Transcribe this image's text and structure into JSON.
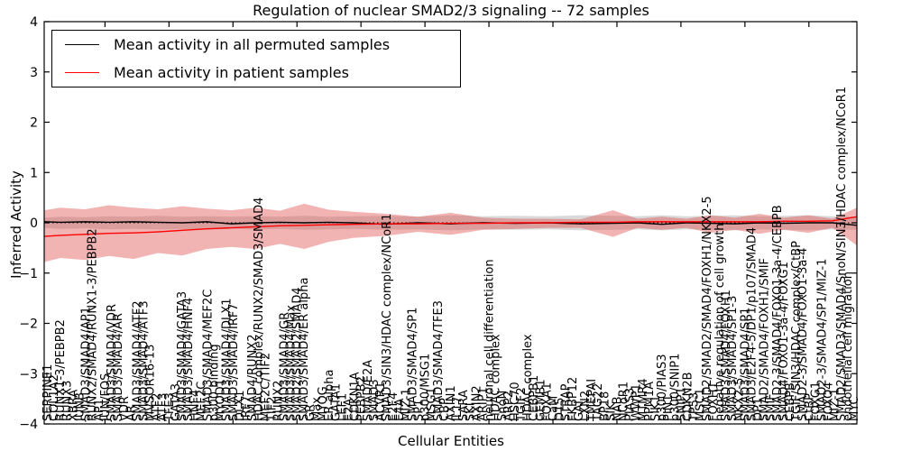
{
  "figure": {
    "title": "Regulation of nuclear SMAD2/3 signaling -- 72 samples",
    "xlabel": "Cellular Entities",
    "ylabel": "Inferred Activity"
  },
  "legend": {
    "entries": [
      {
        "label": "Mean activity in all permuted samples",
        "color": "#000000"
      },
      {
        "label": "Mean activity in patient samples",
        "color": "#ff0000"
      }
    ]
  },
  "chart_data": {
    "type": "line",
    "title": "Regulation of nuclear SMAD2/3 signaling -- 72 samples",
    "xlabel": "Cellular Entities",
    "ylabel": "Inferred Activity",
    "ylim": [
      -4,
      4
    ],
    "grid": false,
    "legend_position": "upper left",
    "yticks": [
      {
        "v": 4,
        "label": "4"
      },
      {
        "v": 3,
        "label": "3"
      },
      {
        "v": 2,
        "label": "2"
      },
      {
        "v": 1,
        "label": "1"
      },
      {
        "v": 0,
        "label": "0"
      },
      {
        "v": -1,
        "label": "−1"
      },
      {
        "v": -2,
        "label": "−2"
      },
      {
        "v": -3,
        "label": "−3"
      },
      {
        "v": -4,
        "label": "−4"
      }
    ],
    "xtick_entity_numbers": [
      10,
      20,
      30,
      40,
      50,
      60,
      70,
      80,
      90,
      100,
      110,
      120
    ],
    "colors": {
      "permuted_line": "#000000",
      "patient_line": "#ff0000",
      "permuted_band": "rgba(130,130,130,0.30)",
      "patient_band": "rgba(225,75,75,0.42)"
    },
    "categories": [
      "SERPINE1",
      "COL1A2",
      "RUNX1-3/PEBPB2",
      "RUNX3",
      "XBRA",
      "JUNB",
      "SMAD3/SMAD4/AP1",
      "RUNX2/SMAD4/RUNX1-3/PEBPB2",
      "AP1",
      "JUN/FOS",
      "SMAD3/SMAD4/VDR",
      "SMAD3/SMAD4/AR",
      "VDR",
      "AR",
      "SMAD3/SMAD4/ATF2",
      "SMAD3/SMAD4/ATF3",
      "MVSOR16-13",
      "ATF2",
      "ATF3",
      "TFE3",
      "GATA3",
      "SMAD3/SMAD4/GATA3",
      "SMAD3/SMAD4/HNF4",
      "HNF4",
      "MEF2C",
      "SMAD3/SMAD4/MEF2C",
      "p300 binding",
      "MYOD1",
      "SMAD3/SMAD4/DLX1",
      "SMAD3/SMAD4/IRF7",
      "DLX1",
      "IRF7",
      "SMAD4/RUNX2",
      "HDAC complex/RUNX2/SMAD3/SMAD4",
      "MEF2C/TIF2",
      "TIF2",
      "RUNX2",
      "SMAD3/SMAD4/GR",
      "SMAD3/SMAD4/Max",
      "SMAD2/SMAD2/SMAD4",
      "SMAD3/SMAD4/ER alpha",
      "GR",
      "Max",
      "MYOG",
      "ER alpha",
      "GATA1",
      "LEF1",
      "E2A",
      "CDKN1A",
      "PEBPB2",
      "SMAD/E2A",
      "SMAD3",
      "ACVR1",
      "SMAD3/SIN3/HDAC complex/NCoR1",
      "E2F4",
      "E4A",
      "MIZ-1",
      "SMAD3/SMAD4/SP1",
      "SP1",
      "p300/MSG1",
      "MSG1",
      "SMAD3/SMAD4/TFE3",
      "CBP",
      "AXIN1",
      "IL17",
      "SARA",
      "SKI",
      "AXIN2",
      "ARIP1",
      "neuronal cell differentiation",
      "HDAC complex",
      "SnoN",
      "ARP2",
      "HSC70",
      "TGIF2",
      "HDAC complex",
      "CEBPB1",
      "GEMB1",
      "FOXA1",
      "CaM",
      "D15",
      "STRAP",
      "FKBP12",
      "GAI",
      "LXN2",
      "TMEPAI",
      "TAG22",
      "BP18",
      "SIK",
      "NAB",
      "NCoR1",
      "PIAS3",
      "WWP1",
      "MTMR4",
      "PPM1A",
      "SIK1",
      "p300/PIAS3",
      "PIN1",
      "p300/SNIP1",
      "SNIP1",
      "CDKN2B",
      "TP53",
      "MSC1",
      "SMAD2/SMAD2/SMAD4/FOXH1/NKX2-5",
      "FOXH1",
      "negative regulation of cell growth",
      "SMAD3/SMAD4/FOXH1",
      "SMAD3/SMAD4/SP1-3",
      "NKX2-5",
      "SMAD3/SMAD4/SP1",
      "SMAD3/E2F4-5/DP1/p107/SMAD4",
      "DP1",
      "SMAD2/SMAD4/FOXH1/SMIF",
      "SMIF",
      "SMAD2-3/SMAD4/FOXO1-3a-4/CEBPB",
      "SMAD4/FOXO1-3a-4/FOXG1",
      "CEBPB",
      "TGIF/SIN3/HDAC complex/CtBP",
      "SMAD2-3/SMAD4/FOXO1-3a-4",
      "CtBP",
      "FOXG1",
      "SMAD2-3/SMAD4/SP1/MIZ-1",
      "FOXO4",
      "MIZ-1",
      "SMAD2/SMAD3/SMAD4/SnoN/SIN3/HDAC complex/NCoR1",
      "endothelial cell migration",
      "MYC"
    ],
    "t": [
      0,
      0.02,
      0.05,
      0.08,
      0.11,
      0.14,
      0.17,
      0.2,
      0.23,
      0.26,
      0.29,
      0.32,
      0.35,
      0.38,
      0.42,
      0.46,
      0.5,
      0.54,
      0.58,
      0.62,
      0.66,
      0.7,
      0.73,
      0.76,
      0.79,
      0.82,
      0.85,
      0.88,
      0.91,
      0.94,
      0.97,
      1.0
    ],
    "series": [
      {
        "name": "Mean activity in all permuted samples",
        "color": "#000000",
        "values": [
          0.02,
          0.01,
          0.02,
          0.01,
          0.02,
          0.01,
          0,
          0.02,
          -0.02,
          0,
          0.01,
          0,
          0.01,
          0,
          -0.03,
          0,
          -0.02,
          0,
          -0.01,
          0,
          -0.02,
          -0.01,
          0,
          -0.03,
          0,
          -0.01,
          -0.02,
          0,
          -0.01,
          0,
          0,
          -0.05
        ]
      },
      {
        "name": "Mean activity in patient samples",
        "color": "#ff0000",
        "values": [
          -0.27,
          -0.25,
          -0.23,
          -0.21,
          -0.2,
          -0.18,
          -0.15,
          -0.12,
          -0.1,
          -0.08,
          -0.06,
          -0.05,
          -0.04,
          -0.03,
          -0.02,
          -0.02,
          -0.01,
          -0.01,
          0,
          0,
          0.01,
          0.01,
          0.02,
          0.02,
          0.02,
          0.02,
          0.02,
          0.02,
          0.03,
          0.03,
          0.04,
          0.12
        ]
      }
    ],
    "bands": [
      {
        "name": "permuted-std-band",
        "upper": [
          0.1,
          0.12,
          0.11,
          0.13,
          0.12,
          0.14,
          0.12,
          0.13,
          0.12,
          0.13,
          0.12,
          0.14,
          0.12,
          0.13,
          0.14,
          0.12,
          0.15,
          0.13,
          0.14,
          0.13,
          0.15,
          0.14,
          0.13,
          0.15,
          0.13,
          0.14,
          0.15,
          0.13,
          0.14,
          0.15,
          0.13,
          0.12
        ],
        "lower": [
          -0.1,
          -0.12,
          -0.11,
          -0.13,
          -0.12,
          -0.13,
          -0.12,
          -0.14,
          -0.12,
          -0.13,
          -0.12,
          -0.14,
          -0.13,
          -0.12,
          -0.14,
          -0.13,
          -0.15,
          -0.13,
          -0.14,
          -0.13,
          -0.15,
          -0.14,
          -0.13,
          -0.15,
          -0.13,
          -0.14,
          -0.15,
          -0.13,
          -0.14,
          -0.15,
          -0.13,
          -0.14
        ]
      },
      {
        "name": "patient-std-band",
        "upper": [
          0.25,
          0.3,
          0.27,
          0.35,
          0.3,
          0.27,
          0.33,
          0.28,
          0.25,
          0.3,
          0.24,
          0.38,
          0.26,
          0.22,
          0.18,
          0.12,
          0.2,
          0.1,
          0.08,
          0.08,
          0.07,
          0.25,
          0.08,
          0.12,
          0.08,
          0.15,
          0.1,
          0.18,
          0.1,
          0.15,
          0.08,
          0.3
        ],
        "lower": [
          -0.78,
          -0.7,
          -0.74,
          -0.66,
          -0.72,
          -0.6,
          -0.65,
          -0.52,
          -0.48,
          -0.52,
          -0.42,
          -0.52,
          -0.38,
          -0.3,
          -0.26,
          -0.18,
          -0.24,
          -0.14,
          -0.12,
          -0.1,
          -0.1,
          -0.28,
          -0.1,
          -0.14,
          -0.1,
          -0.2,
          -0.14,
          -0.22,
          -0.14,
          -0.2,
          -0.1,
          -0.45
        ]
      }
    ]
  }
}
